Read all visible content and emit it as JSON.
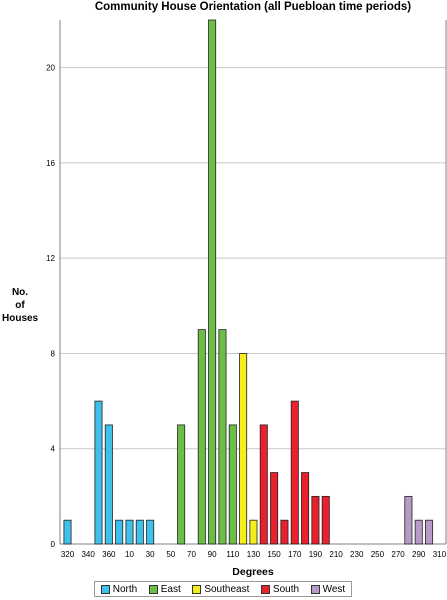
{
  "chart_data": {
    "type": "bar",
    "title": "Community House Orientation (all Puebloan time periods)",
    "xlabel": "Degrees",
    "ylabel": [
      "No.",
      "of",
      "Houses"
    ],
    "ylim": [
      0,
      22
    ],
    "yticks": [
      0,
      4,
      8,
      12,
      16,
      20
    ],
    "grid": true,
    "legend_position": "bottom",
    "xtick_labels": [
      "320",
      "340",
      "360",
      "10",
      "30",
      "50",
      "70",
      "90",
      "110",
      "130",
      "150",
      "170",
      "190",
      "210",
      "230",
      "250",
      "270",
      "290",
      "310"
    ],
    "series": [
      {
        "name": "North",
        "color": "#3fc0ea",
        "points": [
          {
            "x": 320,
            "y": 1
          },
          {
            "x": 350,
            "y": 6
          },
          {
            "x": 360,
            "y": 5
          },
          {
            "x": 10,
            "y": 1
          },
          {
            "x": 20,
            "y": 1
          },
          {
            "x": 30,
            "y": 1
          },
          {
            "x": 40,
            "y": 1
          }
        ]
      },
      {
        "name": "East",
        "color": "#6bbf47",
        "points": [
          {
            "x": 70,
            "y": 5
          },
          {
            "x": 90,
            "y": 9
          },
          {
            "x": 100,
            "y": 22
          },
          {
            "x": 110,
            "y": 9
          },
          {
            "x": 120,
            "y": 5
          }
        ]
      },
      {
        "name": "Southeast",
        "color": "#f4ee1c",
        "points": [
          {
            "x": 130,
            "y": 8
          },
          {
            "x": 140,
            "y": 1
          }
        ]
      },
      {
        "name": "South",
        "color": "#e8212c",
        "points": [
          {
            "x": 150,
            "y": 5
          },
          {
            "x": 160,
            "y": 3
          },
          {
            "x": 170,
            "y": 1
          },
          {
            "x": 180,
            "y": 6
          },
          {
            "x": 190,
            "y": 3
          },
          {
            "x": 200,
            "y": 2
          },
          {
            "x": 210,
            "y": 2
          }
        ]
      },
      {
        "name": "West",
        "color": "#b79ac6",
        "points": [
          {
            "x": 290,
            "y": 2
          },
          {
            "x": 300,
            "y": 1
          },
          {
            "x": 310,
            "y": 1
          }
        ]
      }
    ]
  }
}
